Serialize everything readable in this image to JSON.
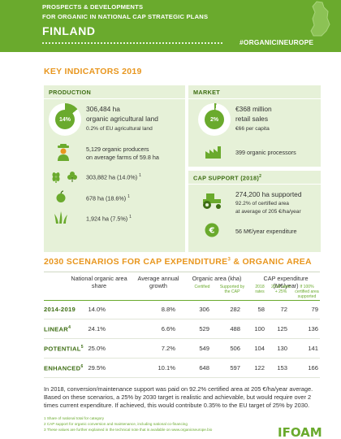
{
  "header": {
    "line1": "PROSPECTS & DEVELOPMENTS",
    "line2": "FOR ORGANIC IN NATIONAL CAP STRATEGIC PLANS",
    "country": "FINLAND",
    "hashtag": "#ORGANICINEUROPE",
    "map_icon": "finland-map-icon"
  },
  "key_indicators": {
    "title": "KEY INDICATORS 2019",
    "production": {
      "heading": "PRODUCTION",
      "donut_pct_label": "14%",
      "donut_fraction": 0.14,
      "area_value": "306,484 ha",
      "area_label": "organic agricultural land",
      "eu_share": "0.2% of EU agricultural land",
      "producers_line1": "5,129 organic producers",
      "producers_line2": "on average farms of 59.8 ha",
      "crop1": "303,882 ha (14.0%)",
      "crop2": "678 ha (18.6%)",
      "crop3": "1,924 ha (7.5%)",
      "footnote_mark": "1"
    },
    "market": {
      "heading": "MARKET",
      "donut_pct_label": "2%",
      "donut_fraction": 0.02,
      "sales_value": "€368 million",
      "sales_label": "retail sales",
      "per_capita": "€66 per capita",
      "processors": "399 organic processors"
    },
    "cap_support": {
      "heading": "CAP SUPPORT (2018)",
      "heading_mark": "2",
      "supported": "274,200 ha supported",
      "certified_share": "92.2% of certified area",
      "average": "at average of 205 €/ha/year",
      "expenditure": "56 M€/year expenditure"
    }
  },
  "scenarios": {
    "title": "2030 SCENARIOS FOR CAP EXPENDITURE",
    "title_mark": "3",
    "title_tail": " & ORGANIC AREA",
    "headers": {
      "national_share": "National organic area share",
      "growth": "Average annual growth",
      "organic_area": "Organic area (kha)",
      "organic_certified": "Certified",
      "organic_supported": "Supported by the CAP",
      "cap_exp": "CAP expenditure (M€/year)",
      "cap_2018_rates": "2018 rates",
      "cap_2018_plus": "2018 rates + 25%",
      "cap_full": "If 100% certified area supported"
    },
    "rows": [
      {
        "label": "2014-2019",
        "mark": "",
        "share": "14.0%",
        "growth": "8.8%",
        "certified": "306",
        "supported": "282",
        "r2018": "58",
        "r2018p": "72",
        "full": "79"
      },
      {
        "label": "LINEAR",
        "mark": "4",
        "share": "24.1%",
        "growth": "6.6%",
        "certified": "529",
        "supported": "488",
        "r2018": "100",
        "r2018p": "125",
        "full": "136"
      },
      {
        "label": "POTENTIAL",
        "mark": "5",
        "share": "25.0%",
        "growth": "7.2%",
        "certified": "549",
        "supported": "506",
        "r2018": "104",
        "r2018p": "130",
        "full": "141"
      },
      {
        "label": "ENHANCED",
        "mark": "6",
        "share": "29.5%",
        "growth": "10.1%",
        "certified": "648",
        "supported": "597",
        "r2018": "122",
        "r2018p": "153",
        "full": "166"
      }
    ],
    "paragraph": "In 2018, conversion/maintenance support was paid on 92.2% certified area at 205 €/ha/year average. Based on these scenarios, a 25% by 2030 target is realistic and achievable, but would require over 2 times current expenditure. If achieved, this would contribute 0.35% to the EU target of 25% by 2030."
  },
  "footnotes": [
    "1 Share of national total for category",
    "2 CAP support for organic conversion and maintenance, including national co-financing",
    "3 These values are further explained in the technical note that is available on www.organicseurope.bio"
  ],
  "logo_text": "IFOAM",
  "colors": {
    "green": "#6aaa2d",
    "dark_green": "#3e6e14",
    "orange": "#e8961e",
    "light_green": "#e6f1d8"
  }
}
